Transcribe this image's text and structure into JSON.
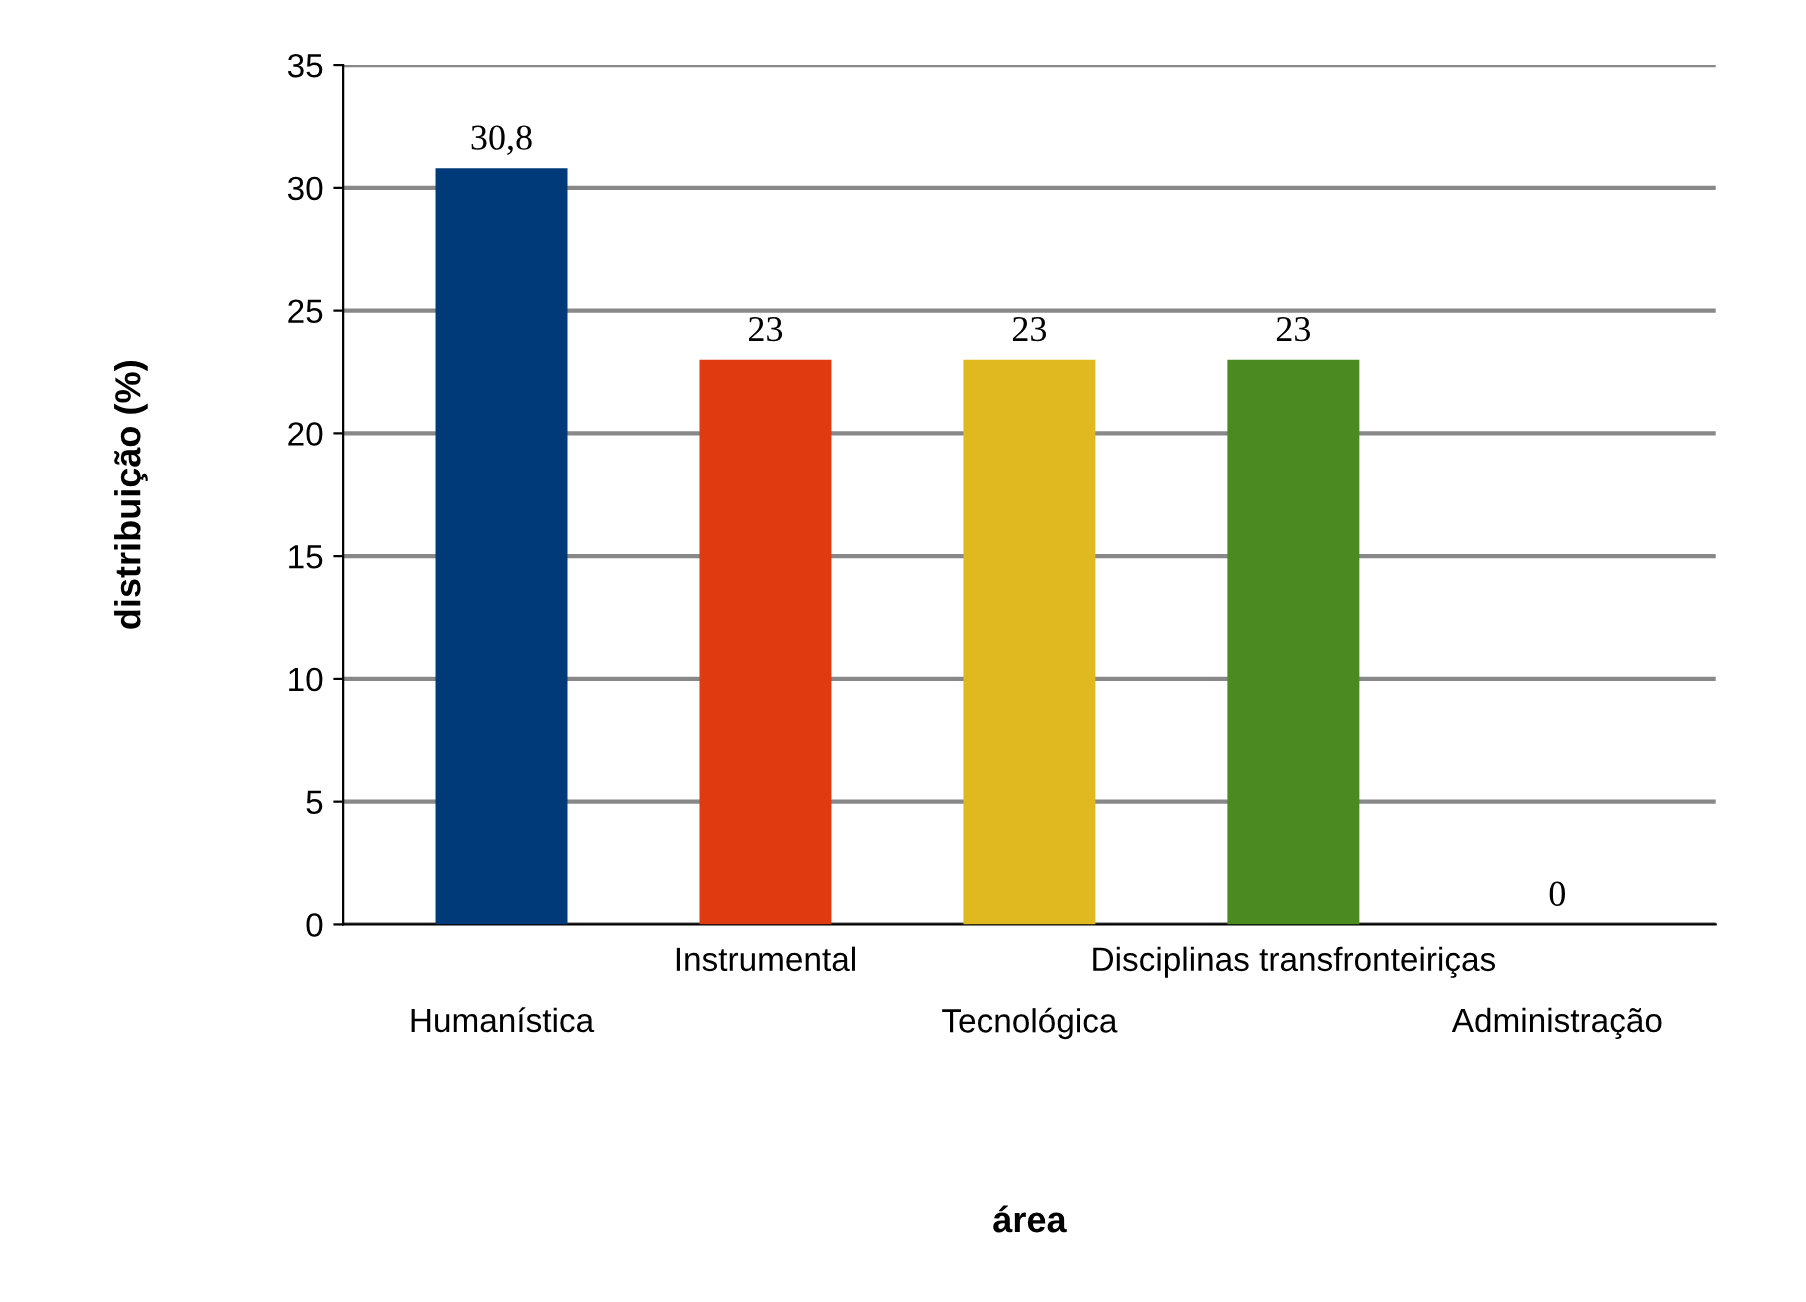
{
  "chart_data": {
    "type": "bar",
    "xlabel": "área",
    "ylabel": "distribuição (%)",
    "categories": [
      "Humanística",
      "Instrumental",
      "Tecnológica",
      "Disciplinas transfronteiriças",
      "Administração"
    ],
    "values": [
      30.8,
      23,
      23,
      23,
      0
    ],
    "value_labels": [
      "30,8",
      "23",
      "23",
      "23",
      "0"
    ],
    "colors": [
      "#003a78",
      "#e03a10",
      "#e0b820",
      "#4a8a20",
      "#808080"
    ],
    "ylim": [
      0,
      35
    ],
    "yticks": [
      0,
      5,
      10,
      15,
      20,
      25,
      30,
      35
    ],
    "grid": "y"
  }
}
